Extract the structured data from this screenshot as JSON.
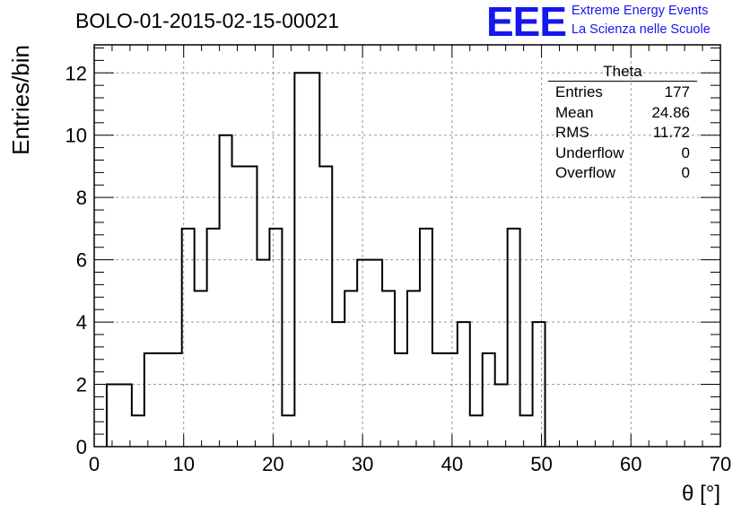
{
  "header": {
    "run_title": "BOLO-01-2015-02-15-00021",
    "logo_text": "EEE",
    "logo_line1": "Extreme Energy Events",
    "logo_line2": "La Scienza nelle Scuole",
    "logo_color": "#1616ee"
  },
  "stats_box": {
    "title": "Theta",
    "rows": [
      {
        "label": "Entries",
        "value": "177"
      },
      {
        "label": "Mean",
        "value": "24.86"
      },
      {
        "label": "RMS",
        "value": "11.72"
      },
      {
        "label": "Underflow",
        "value": "0"
      },
      {
        "label": "Overflow",
        "value": "0"
      }
    ]
  },
  "chart_data": {
    "type": "histogram",
    "xlabel": "θ [°]",
    "ylabel": "Entries/bin",
    "xlim": [
      0,
      70
    ],
    "ylim": [
      0,
      12.9
    ],
    "xticks": [
      0,
      10,
      20,
      30,
      40,
      50,
      60,
      70
    ],
    "yticks": [
      0,
      2,
      4,
      6,
      8,
      10,
      12
    ],
    "grid": true,
    "bin_width": 1.4,
    "bin_edges_start": 1.4,
    "bins": [
      {
        "x": 1.4,
        "value": 2
      },
      {
        "x": 2.8,
        "value": 2
      },
      {
        "x": 4.2,
        "value": 1
      },
      {
        "x": 5.6,
        "value": 3
      },
      {
        "x": 7.0,
        "value": 3
      },
      {
        "x": 8.4,
        "value": 3
      },
      {
        "x": 9.8,
        "value": 7
      },
      {
        "x": 11.2,
        "value": 5
      },
      {
        "x": 12.6,
        "value": 7
      },
      {
        "x": 14.0,
        "value": 10
      },
      {
        "x": 15.4,
        "value": 9
      },
      {
        "x": 16.8,
        "value": 9
      },
      {
        "x": 18.2,
        "value": 6
      },
      {
        "x": 19.6,
        "value": 7
      },
      {
        "x": 21.0,
        "value": 1
      },
      {
        "x": 22.4,
        "value": 12
      },
      {
        "x": 23.8,
        "value": 12
      },
      {
        "x": 25.2,
        "value": 9
      },
      {
        "x": 26.6,
        "value": 4
      },
      {
        "x": 28.0,
        "value": 5
      },
      {
        "x": 29.4,
        "value": 6
      },
      {
        "x": 30.8,
        "value": 6
      },
      {
        "x": 32.2,
        "value": 5
      },
      {
        "x": 33.6,
        "value": 3
      },
      {
        "x": 35.0,
        "value": 5
      },
      {
        "x": 36.4,
        "value": 7
      },
      {
        "x": 37.8,
        "value": 3
      },
      {
        "x": 39.2,
        "value": 3
      },
      {
        "x": 40.6,
        "value": 4
      },
      {
        "x": 42.0,
        "value": 1
      },
      {
        "x": 43.4,
        "value": 3
      },
      {
        "x": 44.8,
        "value": 2
      },
      {
        "x": 46.2,
        "value": 7
      },
      {
        "x": 47.6,
        "value": 1
      },
      {
        "x": 49.0,
        "value": 4
      }
    ],
    "line_color": "#000000",
    "grid_color": "#9a9a9a"
  }
}
